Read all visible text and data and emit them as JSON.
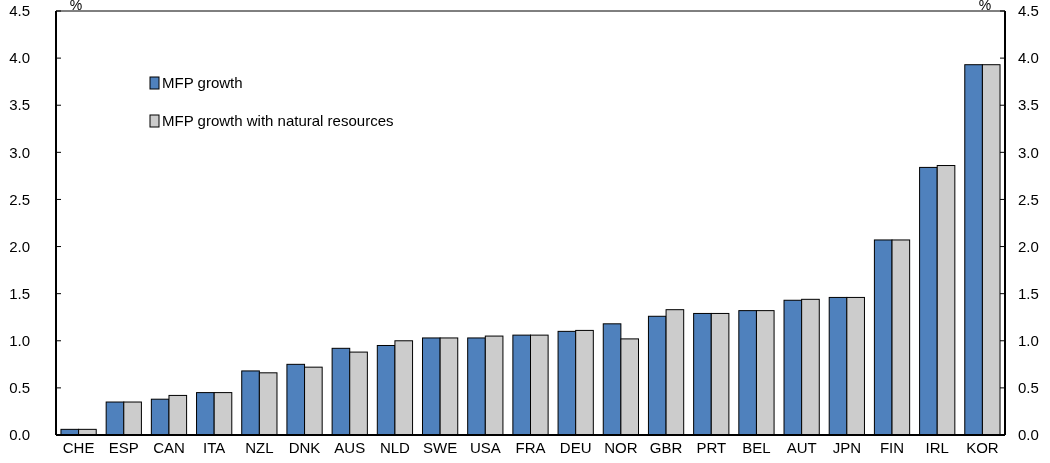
{
  "chart_data": {
    "type": "bar",
    "ylabel": "%",
    "y2label": "%",
    "categories": [
      "CHE",
      "ESP",
      "CAN",
      "ITA",
      "NZL",
      "DNK",
      "AUS",
      "NLD",
      "SWE",
      "USA",
      "FRA",
      "DEU",
      "NOR",
      "GBR",
      "PRT",
      "BEL",
      "AUT",
      "JPN",
      "FIN",
      "IRL",
      "KOR"
    ],
    "series": [
      {
        "name": "MFP growth",
        "color": "#4f81bd",
        "values": [
          0.06,
          0.35,
          0.38,
          0.45,
          0.68,
          0.75,
          0.92,
          0.95,
          1.03,
          1.03,
          1.06,
          1.1,
          1.18,
          1.26,
          1.29,
          1.32,
          1.43,
          1.46,
          2.07,
          2.84,
          3.93
        ]
      },
      {
        "name": "MFP growth with natural resources",
        "color": "#cccccc",
        "values": [
          0.06,
          0.35,
          0.42,
          0.45,
          0.66,
          0.72,
          0.88,
          1.0,
          1.03,
          1.05,
          1.06,
          1.11,
          1.02,
          1.33,
          1.29,
          1.32,
          1.44,
          1.46,
          2.07,
          2.86,
          3.93
        ]
      }
    ],
    "ylim": [
      0,
      4.5
    ],
    "yticks": [
      {
        "value": 0,
        "label": "0.0"
      },
      {
        "value": 0.5,
        "label": "0.5"
      },
      {
        "value": 1,
        "label": "1.0"
      },
      {
        "value": 1.5,
        "label": "1.5"
      },
      {
        "value": 2,
        "label": "2.0"
      },
      {
        "value": 2.5,
        "label": "2.5"
      },
      {
        "value": 3,
        "label": "3.0"
      },
      {
        "value": 3.5,
        "label": "3.5"
      },
      {
        "value": 4,
        "label": "4.0"
      },
      {
        "value": 4.5,
        "label": "4.5"
      }
    ],
    "y2lim": [
      0,
      4.5
    ],
    "y2ticks": [
      {
        "value": 0,
        "label": "0.0"
      },
      {
        "value": 0.5,
        "label": "0.5"
      },
      {
        "value": 1,
        "label": "1.0"
      },
      {
        "value": 1.5,
        "label": "1.5"
      },
      {
        "value": 2,
        "label": "2.0"
      },
      {
        "value": 2.5,
        "label": "2.5"
      },
      {
        "value": 3,
        "label": "3.0"
      },
      {
        "value": 3.5,
        "label": "3.5"
      },
      {
        "value": 4,
        "label": "4.0"
      },
      {
        "value": 4.5,
        "label": "4.5"
      }
    ],
    "legend": "top left",
    "grid": false
  }
}
